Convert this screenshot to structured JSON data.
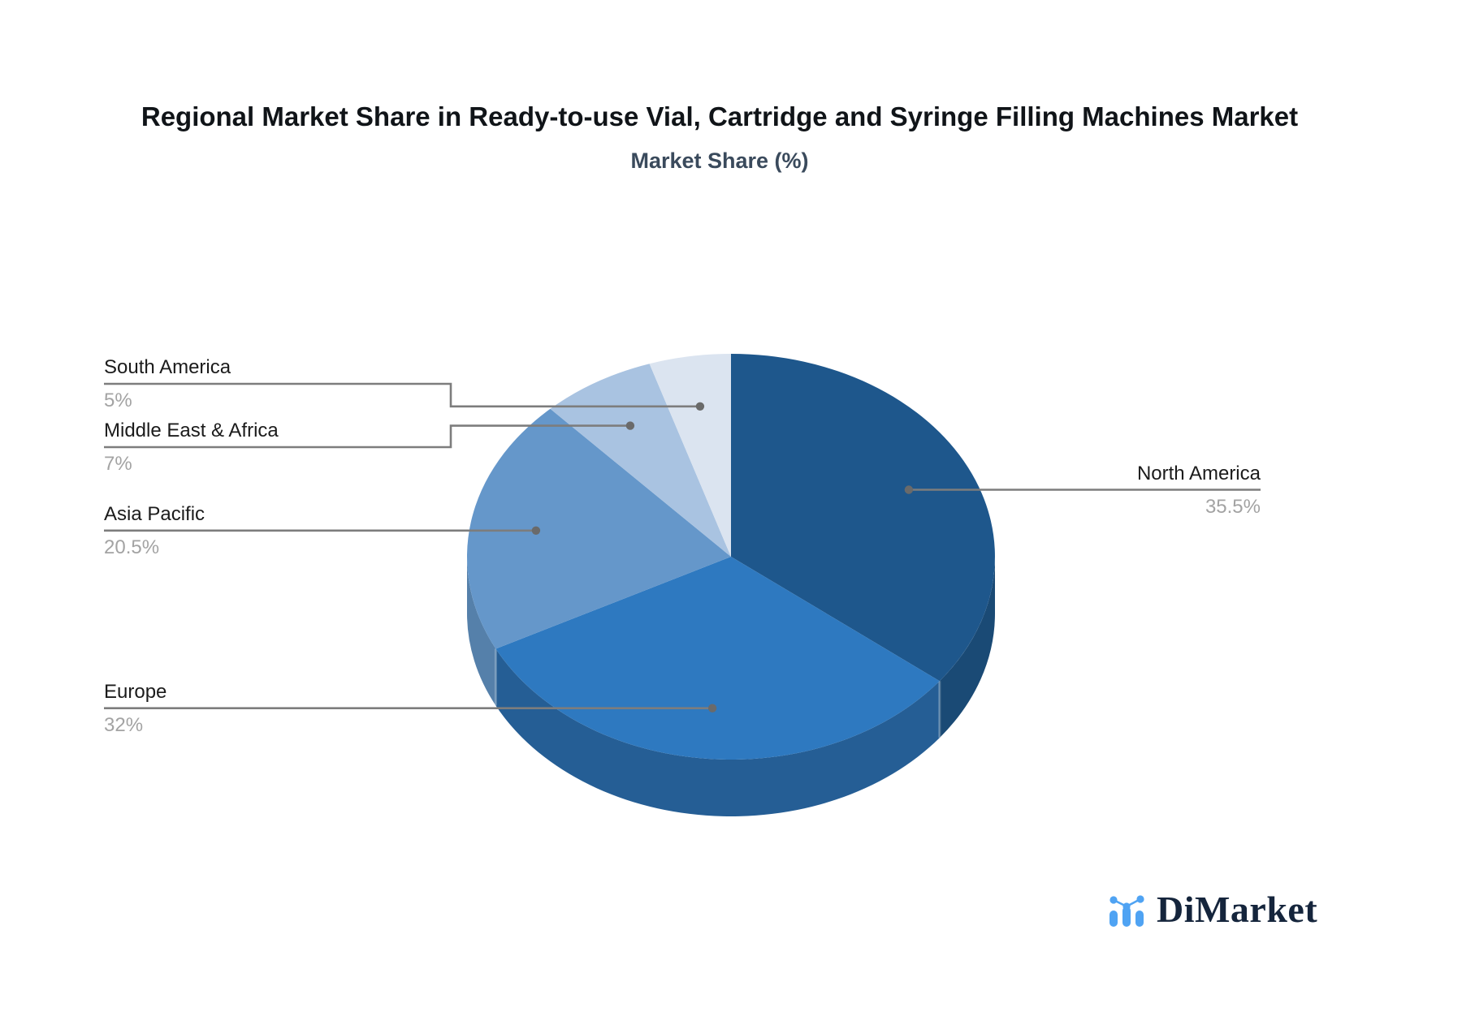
{
  "title": "Regional Market Share in Ready-to-use Vial, Cartridge and Syringe Filling Machines Market",
  "subtitle": "Market Share (%)",
  "logo": {
    "text": "DiMarket"
  },
  "chart_data": {
    "type": "pie",
    "style": "3d-pie",
    "title": "Regional Market Share in Ready-to-use Vial, Cartridge and Syringe Filling Machines Market",
    "value_axis_label": "Market Share (%)",
    "unit": "%",
    "start_angle_deg": 0,
    "direction": "clockwise",
    "legend_position": "callout-labels",
    "categories": [
      "North America",
      "Europe",
      "Asia Pacific",
      "Middle East & Africa",
      "South America"
    ],
    "values": [
      35.5,
      32,
      20.5,
      7,
      5
    ],
    "labels_pct": [
      "35.5%",
      "32%",
      "20.5%",
      "7%",
      "5%"
    ],
    "colors": [
      "#1E578C",
      "#2E79C0",
      "#6597CA",
      "#A9C3E1",
      "#DBE4F0"
    ],
    "side_colors": [
      "#1A4A75",
      "#255E95",
      "#5580AA",
      "#8FB0D6",
      "#C3D3E8"
    ],
    "leader_line_color": "#7D7D7D",
    "leader_dot_color": "#6A6A6A",
    "label_color": "#1B1B1B",
    "pct_color": "#A3A3A3"
  }
}
